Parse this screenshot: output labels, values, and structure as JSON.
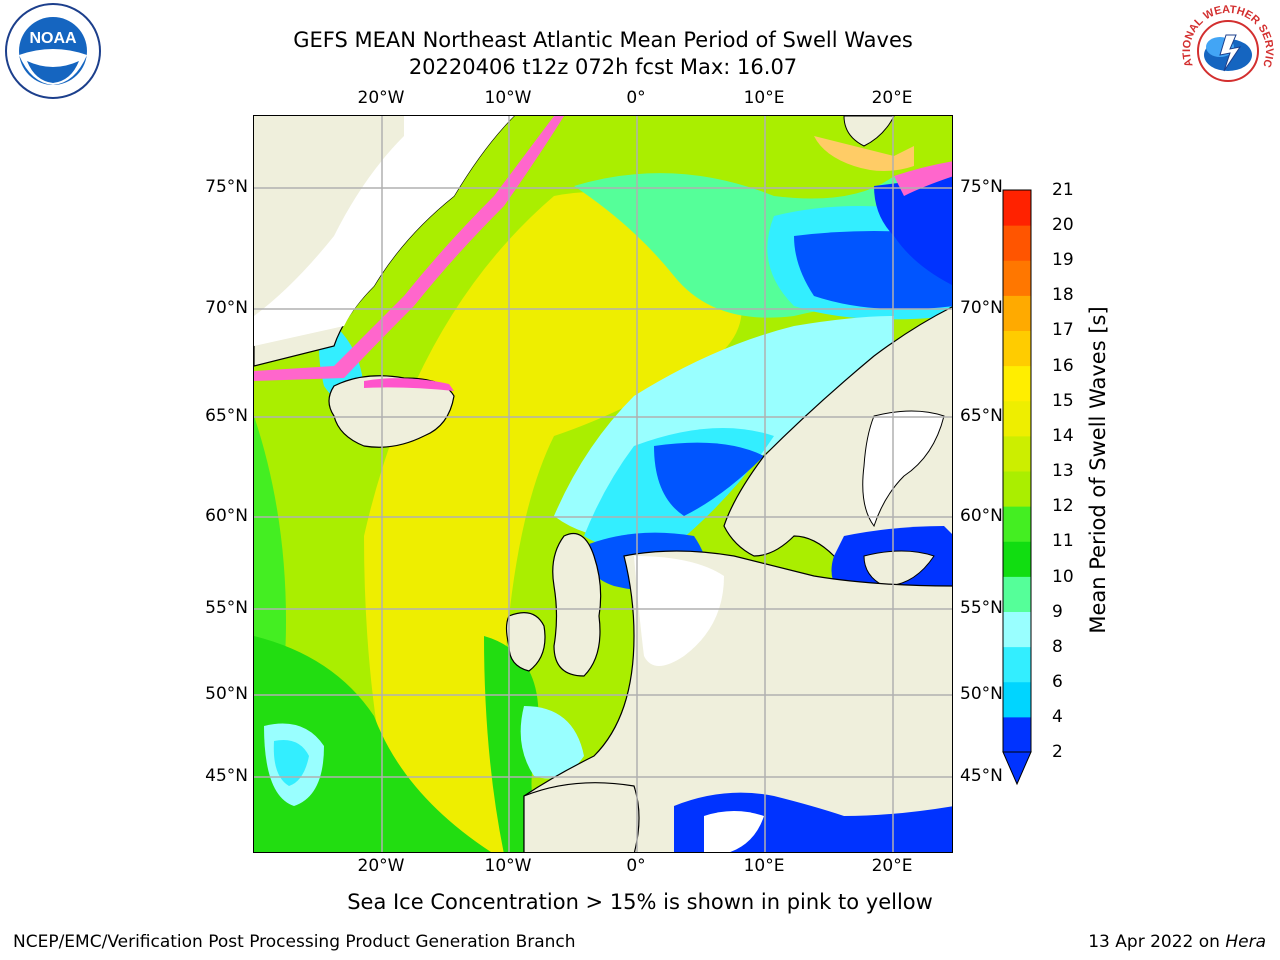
{
  "title": {
    "line1": "GEFS MEAN Northeast Atlantic Mean Period of Swell Waves",
    "line2": "20220406 t12z 072h fcst   Max: 16.07"
  },
  "map": {
    "lon_labels": [
      "20°W",
      "10°W",
      "0°",
      "10°E",
      "20°E"
    ],
    "lat_labels": [
      "75°N",
      "70°N",
      "65°N",
      "60°N",
      "55°N",
      "50°N",
      "45°N"
    ],
    "note": "Sea Ice Concentration > 15% is shown in pink to yellow"
  },
  "colorbar": {
    "title": "Mean Period of Swell Waves [s]",
    "ticks": [
      "2",
      "4",
      "6",
      "8",
      "9",
      "10",
      "11",
      "12",
      "13",
      "14",
      "15",
      "16",
      "17",
      "18",
      "19",
      "20",
      "21"
    ],
    "colors": [
      "#0033ff",
      "#00d5ff",
      "#33eeff",
      "#99ffff",
      "#55ff99",
      "#11dd11",
      "#44ee22",
      "#aaee00",
      "#ccee00",
      "#eeee00",
      "#ffee00",
      "#ffcc00",
      "#ffaa00",
      "#ff7700",
      "#ff5500",
      "#ff2200"
    ]
  },
  "logos": {
    "left": "NOAA",
    "right": "NATIONAL WEATHER SERVICE"
  },
  "footer": {
    "left": "NCEP/EMC/Verification Post Processing Product Generation Branch",
    "right_prefix": "13 Apr 2022 on ",
    "right_host": "Hera"
  }
}
